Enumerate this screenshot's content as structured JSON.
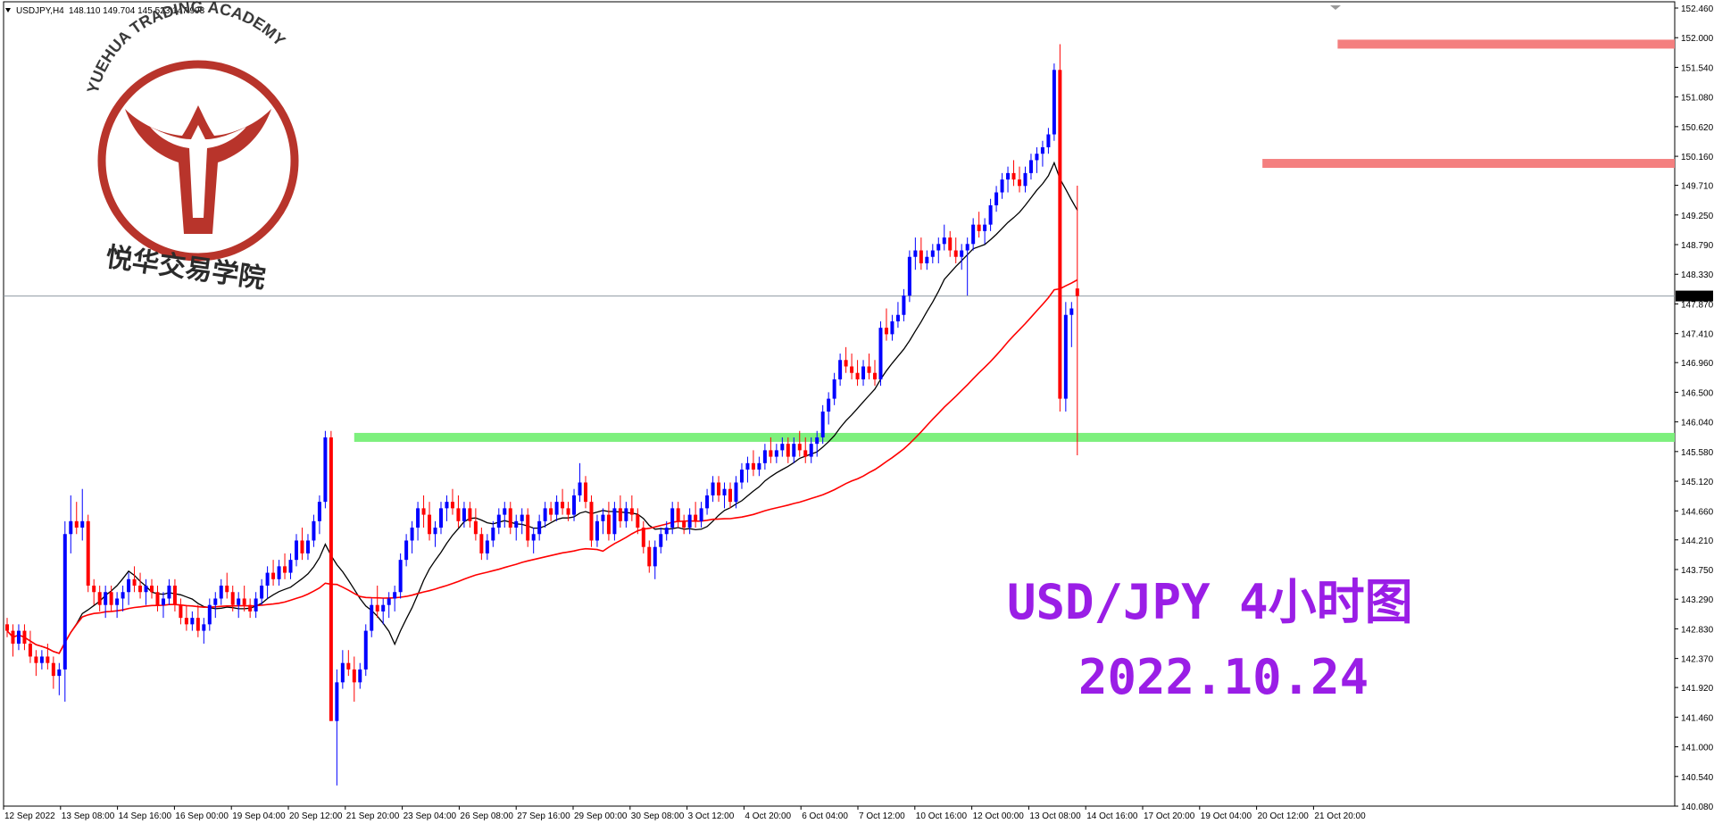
{
  "header": {
    "symbol": "USDJPY,H4",
    "ohlc": "148.110 149.704 145.523 147.993"
  },
  "logo": {
    "arc_text": "YUEHUA TRADING ACADEMY",
    "cn_text": "悦华交易学院"
  },
  "overlay": {
    "line1": "USD/JPY 4小时图",
    "line2": "2022.10.24"
  },
  "colors": {
    "bull": "#0000ff",
    "bear": "#ff0000",
    "ma_fast": "#000000",
    "ma_slow": "#ff0000",
    "support": "#7df07d",
    "resistance": "#f47f7f",
    "title": "#9a1ee6",
    "logo_red": "#b8342b"
  },
  "chart_data": {
    "type": "candlestick",
    "ylim": [
      140.08,
      152.46
    ],
    "y_ticks": [
      "152.460",
      "152.000",
      "151.540",
      "151.080",
      "150.620",
      "150.160",
      "149.710",
      "149.250",
      "148.790",
      "148.330",
      "147.870",
      "147.410",
      "146.960",
      "146.500",
      "146.040",
      "145.580",
      "145.120",
      "144.660",
      "144.210",
      "143.750",
      "143.290",
      "142.830",
      "142.370",
      "141.920",
      "141.460",
      "141.000",
      "140.540",
      "140.080"
    ],
    "current_price": "147.993",
    "x_labels": [
      "12 Sep 2022",
      "13 Sep 08:00",
      "14 Sep 16:00",
      "16 Sep 00:00",
      "19 Sep 04:00",
      "20 Sep 12:00",
      "21 Sep 20:00",
      "23 Sep 04:00",
      "26 Sep 08:00",
      "27 Sep 16:00",
      "29 Sep 00:00",
      "30 Sep 08:00",
      "3 Oct 12:00",
      "4 Oct 20:00",
      "6 Oct 04:00",
      "7 Oct 12:00",
      "10 Oct 16:00",
      "12 Oct 00:00",
      "13 Oct 08:00",
      "14 Oct 16:00",
      "17 Oct 20:00",
      "19 Oct 04:00",
      "20 Oct 12:00",
      "21 Oct 20:00"
    ],
    "levels": [
      {
        "kind": "resistance",
        "price": 151.9,
        "x_from_bar": 230
      },
      {
        "kind": "resistance",
        "price": 150.05,
        "x_from_bar": 217
      },
      {
        "kind": "support",
        "price": 145.8,
        "x_from_bar": 60
      }
    ],
    "candles": [
      [
        142.9,
        143.0,
        142.7,
        142.8
      ],
      [
        142.8,
        142.9,
        142.4,
        142.6
      ],
      [
        142.6,
        142.9,
        142.5,
        142.8
      ],
      [
        142.8,
        142.9,
        142.5,
        142.6
      ],
      [
        142.6,
        142.8,
        142.3,
        142.4
      ],
      [
        142.4,
        142.5,
        142.1,
        142.3
      ],
      [
        142.3,
        142.5,
        142.2,
        142.4
      ],
      [
        142.4,
        142.6,
        142.2,
        142.3
      ],
      [
        142.3,
        142.4,
        141.9,
        142.1
      ],
      [
        142.1,
        142.3,
        141.8,
        142.2
      ],
      [
        142.2,
        144.5,
        141.7,
        144.3
      ],
      [
        144.3,
        144.9,
        144.0,
        144.5
      ],
      [
        144.5,
        144.8,
        144.3,
        144.4
      ],
      [
        144.4,
        145.0,
        144.2,
        144.5
      ],
      [
        144.5,
        144.6,
        143.4,
        143.5
      ],
      [
        143.5,
        143.6,
        143.2,
        143.4
      ],
      [
        143.4,
        143.5,
        143.1,
        143.2
      ],
      [
        143.2,
        143.5,
        143.0,
        143.4
      ],
      [
        143.4,
        143.5,
        143.1,
        143.2
      ],
      [
        143.2,
        143.4,
        143.0,
        143.3
      ],
      [
        143.3,
        143.5,
        143.1,
        143.4
      ],
      [
        143.4,
        143.7,
        143.2,
        143.6
      ],
      [
        143.6,
        143.8,
        143.4,
        143.5
      ],
      [
        143.5,
        143.7,
        143.3,
        143.4
      ],
      [
        143.4,
        143.6,
        143.2,
        143.5
      ],
      [
        143.5,
        143.6,
        143.3,
        143.4
      ],
      [
        143.4,
        143.5,
        143.1,
        143.2
      ],
      [
        143.2,
        143.4,
        143.0,
        143.3
      ],
      [
        143.3,
        143.6,
        143.2,
        143.5
      ],
      [
        143.5,
        143.6,
        143.1,
        143.2
      ],
      [
        143.2,
        143.3,
        142.9,
        143.0
      ],
      [
        143.0,
        143.2,
        142.8,
        142.9
      ],
      [
        142.9,
        143.1,
        142.8,
        143.0
      ],
      [
        143.0,
        143.2,
        142.7,
        142.8
      ],
      [
        142.8,
        143.0,
        142.6,
        142.9
      ],
      [
        142.9,
        143.3,
        142.8,
        143.2
      ],
      [
        143.2,
        143.4,
        143.0,
        143.3
      ],
      [
        143.3,
        143.6,
        143.2,
        143.5
      ],
      [
        143.5,
        143.7,
        143.3,
        143.4
      ],
      [
        143.4,
        143.5,
        143.1,
        143.2
      ],
      [
        143.2,
        143.4,
        143.0,
        143.3
      ],
      [
        143.3,
        143.5,
        143.1,
        143.2
      ],
      [
        143.2,
        143.3,
        143.0,
        143.1
      ],
      [
        143.1,
        143.4,
        143.0,
        143.3
      ],
      [
        143.3,
        143.6,
        143.2,
        143.5
      ],
      [
        143.5,
        143.8,
        143.3,
        143.7
      ],
      [
        143.7,
        143.9,
        143.5,
        143.6
      ],
      [
        143.6,
        143.9,
        143.5,
        143.8
      ],
      [
        143.8,
        144.0,
        143.6,
        143.7
      ],
      [
        143.7,
        144.0,
        143.6,
        143.9
      ],
      [
        143.9,
        144.3,
        143.8,
        144.2
      ],
      [
        144.2,
        144.4,
        143.9,
        144.0
      ],
      [
        144.0,
        144.3,
        143.9,
        144.2
      ],
      [
        144.2,
        144.6,
        144.1,
        144.5
      ],
      [
        144.5,
        144.9,
        144.3,
        144.8
      ],
      [
        144.8,
        145.9,
        144.7,
        145.8
      ],
      [
        145.8,
        145.9,
        141.4,
        141.4
      ],
      [
        141.4,
        142.2,
        140.4,
        142.0
      ],
      [
        142.0,
        142.5,
        141.9,
        142.3
      ],
      [
        142.3,
        142.5,
        142.1,
        142.2
      ],
      [
        142.2,
        142.4,
        141.7,
        142.0
      ],
      [
        142.0,
        142.3,
        141.9,
        142.2
      ],
      [
        142.2,
        142.9,
        142.1,
        142.8
      ],
      [
        142.8,
        143.3,
        142.7,
        143.2
      ],
      [
        143.2,
        143.5,
        143.0,
        143.1
      ],
      [
        143.1,
        143.3,
        142.9,
        143.2
      ],
      [
        143.2,
        143.4,
        143.0,
        143.3
      ],
      [
        143.3,
        143.5,
        143.1,
        143.4
      ],
      [
        143.4,
        144.0,
        143.3,
        143.9
      ],
      [
        143.9,
        144.3,
        143.8,
        144.2
      ],
      [
        144.2,
        144.5,
        144.0,
        144.4
      ],
      [
        144.4,
        144.8,
        144.2,
        144.7
      ],
      [
        144.7,
        144.9,
        144.4,
        144.6
      ],
      [
        144.6,
        144.8,
        144.2,
        144.3
      ],
      [
        144.3,
        144.5,
        144.1,
        144.4
      ],
      [
        144.4,
        144.8,
        144.3,
        144.7
      ],
      [
        144.7,
        144.9,
        144.5,
        144.8
      ],
      [
        144.8,
        145.0,
        144.6,
        144.7
      ],
      [
        144.7,
        144.9,
        144.4,
        144.5
      ],
      [
        144.5,
        144.8,
        144.4,
        144.7
      ],
      [
        144.7,
        144.8,
        144.4,
        144.5
      ],
      [
        144.5,
        144.7,
        144.2,
        144.3
      ],
      [
        144.3,
        144.4,
        143.9,
        144.0
      ],
      [
        144.0,
        144.3,
        143.9,
        144.2
      ],
      [
        144.2,
        144.5,
        144.1,
        144.4
      ],
      [
        144.4,
        144.7,
        144.3,
        144.6
      ],
      [
        144.6,
        144.8,
        144.4,
        144.7
      ],
      [
        144.7,
        144.8,
        144.3,
        144.4
      ],
      [
        144.4,
        144.6,
        144.2,
        144.5
      ],
      [
        144.5,
        144.7,
        144.3,
        144.6
      ],
      [
        144.6,
        144.7,
        144.1,
        144.2
      ],
      [
        144.2,
        144.4,
        144.0,
        144.3
      ],
      [
        144.3,
        144.6,
        144.2,
        144.5
      ],
      [
        144.5,
        144.8,
        144.4,
        144.7
      ],
      [
        144.7,
        144.8,
        144.5,
        144.6
      ],
      [
        144.6,
        144.9,
        144.5,
        144.8
      ],
      [
        144.8,
        145.0,
        144.6,
        144.7
      ],
      [
        144.7,
        144.8,
        144.5,
        144.6
      ],
      [
        144.6,
        145.0,
        144.5,
        144.9
      ],
      [
        144.9,
        145.4,
        144.8,
        145.1
      ],
      [
        145.1,
        145.2,
        144.7,
        144.8
      ],
      [
        144.8,
        144.9,
        144.1,
        144.2
      ],
      [
        144.2,
        144.6,
        144.1,
        144.5
      ],
      [
        144.5,
        144.7,
        144.3,
        144.6
      ],
      [
        144.6,
        144.8,
        144.2,
        144.3
      ],
      [
        144.3,
        144.8,
        144.2,
        144.7
      ],
      [
        144.7,
        144.9,
        144.4,
        144.5
      ],
      [
        144.5,
        144.8,
        144.4,
        144.7
      ],
      [
        144.7,
        144.9,
        144.5,
        144.6
      ],
      [
        144.6,
        144.7,
        144.3,
        144.4
      ],
      [
        144.4,
        144.5,
        144.0,
        144.1
      ],
      [
        144.1,
        144.2,
        143.7,
        143.8
      ],
      [
        143.8,
        144.2,
        143.6,
        144.1
      ],
      [
        144.1,
        144.4,
        144.0,
        144.3
      ],
      [
        144.3,
        144.5,
        144.2,
        144.4
      ],
      [
        144.4,
        144.8,
        144.3,
        144.7
      ],
      [
        144.7,
        144.8,
        144.4,
        144.5
      ],
      [
        144.5,
        144.6,
        144.3,
        144.4
      ],
      [
        144.4,
        144.7,
        144.3,
        144.6
      ],
      [
        144.6,
        144.8,
        144.4,
        144.5
      ],
      [
        144.5,
        144.8,
        144.4,
        144.7
      ],
      [
        144.7,
        145.0,
        144.6,
        144.9
      ],
      [
        144.9,
        145.2,
        144.8,
        145.1
      ],
      [
        145.1,
        145.2,
        144.8,
        144.9
      ],
      [
        144.9,
        145.1,
        144.7,
        145.0
      ],
      [
        145.0,
        145.1,
        144.7,
        144.8
      ],
      [
        144.8,
        145.2,
        144.7,
        145.1
      ],
      [
        145.1,
        145.4,
        145.0,
        145.3
      ],
      [
        145.3,
        145.5,
        145.1,
        145.4
      ],
      [
        145.4,
        145.6,
        145.2,
        145.3
      ],
      [
        145.3,
        145.5,
        145.2,
        145.4
      ],
      [
        145.4,
        145.7,
        145.3,
        145.6
      ],
      [
        145.6,
        145.8,
        145.4,
        145.5
      ],
      [
        145.5,
        145.7,
        145.4,
        145.6
      ],
      [
        145.6,
        145.8,
        145.5,
        145.7
      ],
      [
        145.7,
        145.8,
        145.4,
        145.5
      ],
      [
        145.5,
        145.8,
        145.4,
        145.7
      ],
      [
        145.7,
        145.9,
        145.5,
        145.6
      ],
      [
        145.6,
        145.8,
        145.4,
        145.5
      ],
      [
        145.5,
        145.8,
        145.4,
        145.7
      ],
      [
        145.7,
        145.9,
        145.5,
        145.8
      ],
      [
        145.8,
        146.3,
        145.7,
        146.2
      ],
      [
        146.2,
        146.5,
        146.0,
        146.4
      ],
      [
        146.4,
        146.8,
        146.3,
        146.7
      ],
      [
        146.7,
        147.1,
        146.6,
        147.0
      ],
      [
        147.0,
        147.2,
        146.8,
        146.9
      ],
      [
        146.9,
        147.1,
        146.7,
        146.8
      ],
      [
        146.8,
        147.0,
        146.6,
        146.7
      ],
      [
        146.7,
        147.0,
        146.6,
        146.9
      ],
      [
        146.9,
        147.1,
        146.7,
        146.8
      ],
      [
        146.8,
        147.0,
        146.6,
        146.7
      ],
      [
        146.7,
        147.6,
        146.6,
        147.5
      ],
      [
        147.5,
        147.8,
        147.3,
        147.4
      ],
      [
        147.4,
        147.7,
        147.3,
        147.6
      ],
      [
        147.6,
        147.9,
        147.5,
        147.7
      ],
      [
        147.7,
        148.1,
        147.6,
        148.0
      ],
      [
        148.0,
        148.7,
        147.9,
        148.6
      ],
      [
        148.6,
        148.9,
        148.4,
        148.7
      ],
      [
        148.7,
        148.9,
        148.4,
        148.5
      ],
      [
        148.5,
        148.7,
        148.4,
        148.6
      ],
      [
        148.6,
        148.8,
        148.5,
        148.7
      ],
      [
        148.7,
        148.9,
        148.5,
        148.8
      ],
      [
        148.8,
        149.1,
        148.7,
        148.9
      ],
      [
        148.9,
        149.0,
        148.6,
        148.7
      ],
      [
        148.7,
        148.9,
        148.5,
        148.6
      ],
      [
        148.6,
        148.8,
        148.4,
        148.7
      ],
      [
        148.7,
        148.9,
        148.0,
        148.8
      ],
      [
        148.8,
        149.2,
        148.7,
        149.1
      ],
      [
        149.1,
        149.3,
        148.9,
        149.0
      ],
      [
        149.0,
        149.2,
        148.8,
        149.1
      ],
      [
        149.1,
        149.5,
        149.0,
        149.4
      ],
      [
        149.4,
        149.7,
        149.3,
        149.6
      ],
      [
        149.6,
        149.9,
        149.5,
        149.8
      ],
      [
        149.8,
        150.0,
        149.6,
        149.9
      ],
      [
        149.9,
        150.1,
        149.7,
        149.8
      ],
      [
        149.8,
        150.0,
        149.6,
        149.7
      ],
      [
        149.7,
        150.0,
        149.6,
        149.9
      ],
      [
        149.9,
        150.2,
        149.8,
        150.1
      ],
      [
        150.1,
        150.3,
        149.9,
        150.2
      ],
      [
        150.2,
        150.4,
        150.0,
        150.3
      ],
      [
        150.3,
        150.6,
        150.2,
        150.5
      ],
      [
        150.5,
        151.6,
        150.4,
        151.5
      ],
      [
        151.5,
        151.9,
        146.2,
        146.4
      ],
      [
        146.4,
        147.9,
        146.2,
        147.7
      ],
      [
        147.7,
        147.9,
        147.2,
        147.8
      ],
      [
        148.11,
        149.704,
        145.523,
        147.993
      ]
    ]
  }
}
